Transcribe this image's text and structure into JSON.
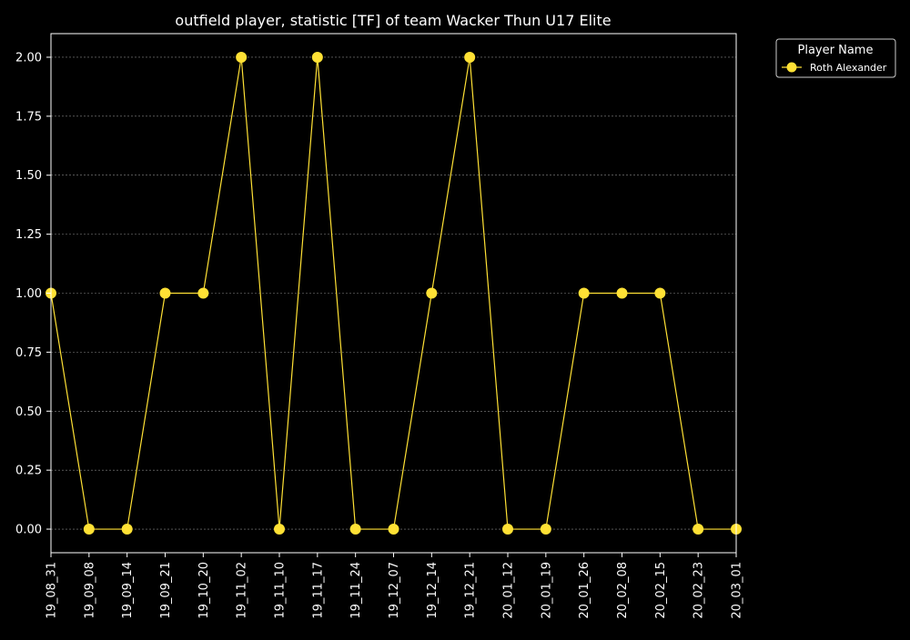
{
  "chart_data": {
    "type": "line",
    "title": "outfield player, statistic [TF] of team Wacker Thun U17 Elite",
    "xlabel": "",
    "ylabel": "",
    "categories": [
      "19_08_31",
      "19_09_08",
      "19_09_14",
      "19_09_21",
      "19_10_20",
      "19_11_02",
      "19_11_10",
      "19_11_17",
      "19_11_24",
      "19_12_07",
      "19_12_14",
      "19_12_21",
      "20_01_12",
      "20_01_19",
      "20_01_26",
      "20_02_08",
      "20_02_15",
      "20_02_23",
      "20_03_01"
    ],
    "series": [
      {
        "name": "Roth Alexander",
        "values": [
          1,
          0,
          0,
          1,
          1,
          2,
          0,
          2,
          0,
          0,
          1,
          2,
          0,
          0,
          1,
          1,
          1,
          0,
          0
        ]
      }
    ],
    "ylim": [
      -0.1,
      2.1
    ],
    "yticks": [
      0.0,
      0.25,
      0.5,
      0.75,
      1.0,
      1.25,
      1.5,
      1.75,
      2.0
    ],
    "ytick_labels": [
      "0.00",
      "0.25",
      "0.50",
      "0.75",
      "1.00",
      "1.25",
      "1.50",
      "1.75",
      "2.00"
    ],
    "grid": true,
    "legend": {
      "title": "Player Name",
      "placement": "outside-top-right"
    },
    "colors": {
      "background": "#000000",
      "line": "#ffe135",
      "marker": "#ffe135",
      "axes": "#ffffff",
      "grid": "#888888"
    }
  }
}
